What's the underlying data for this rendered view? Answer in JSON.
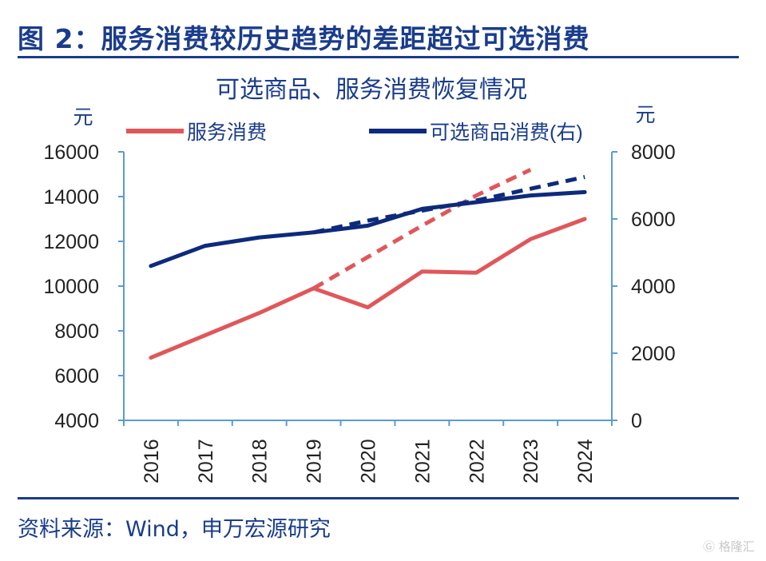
{
  "figure": {
    "title": "图 2：服务消费较历史趋势的差距超过可选消费",
    "source": "资料来源：Wind，申万宏源研究",
    "watermark": "格隆汇"
  },
  "chart_data": {
    "type": "line",
    "title": "可选商品、服务消费恢复情况",
    "left_unit": "元",
    "right_unit": "元",
    "categories": [
      "2016",
      "2017",
      "2018",
      "2019",
      "2020",
      "2021",
      "2022",
      "2023",
      "2024"
    ],
    "left_axis": {
      "min": 4000,
      "max": 16000,
      "ticks": [
        4000,
        6000,
        8000,
        10000,
        12000,
        14000,
        16000
      ]
    },
    "right_axis": {
      "min": 0,
      "max": 8000,
      "ticks": [
        0,
        2000,
        4000,
        6000,
        8000
      ]
    },
    "series": [
      {
        "name": "服务消费",
        "axis": "left",
        "color": "#e0575a",
        "values": [
          6800,
          7800,
          8800,
          9900,
          9050,
          10650,
          10600,
          12100,
          13000
        ],
        "trend": {
          "x_start": "2019",
          "values": [
            9900,
            11300,
            12700,
            14050,
            15200
          ]
        }
      },
      {
        "name": "可选商品消费(右)",
        "axis": "right",
        "color": "#0d2a7c",
        "values": [
          4600,
          5200,
          5450,
          5600,
          5800,
          6300,
          6500,
          6700,
          6800
        ],
        "trend": {
          "x_start": "2019",
          "values": [
            5600,
            5950,
            6250,
            6550,
            6900,
            7250
          ]
        }
      }
    ],
    "legend_position": "top",
    "grid": false
  }
}
